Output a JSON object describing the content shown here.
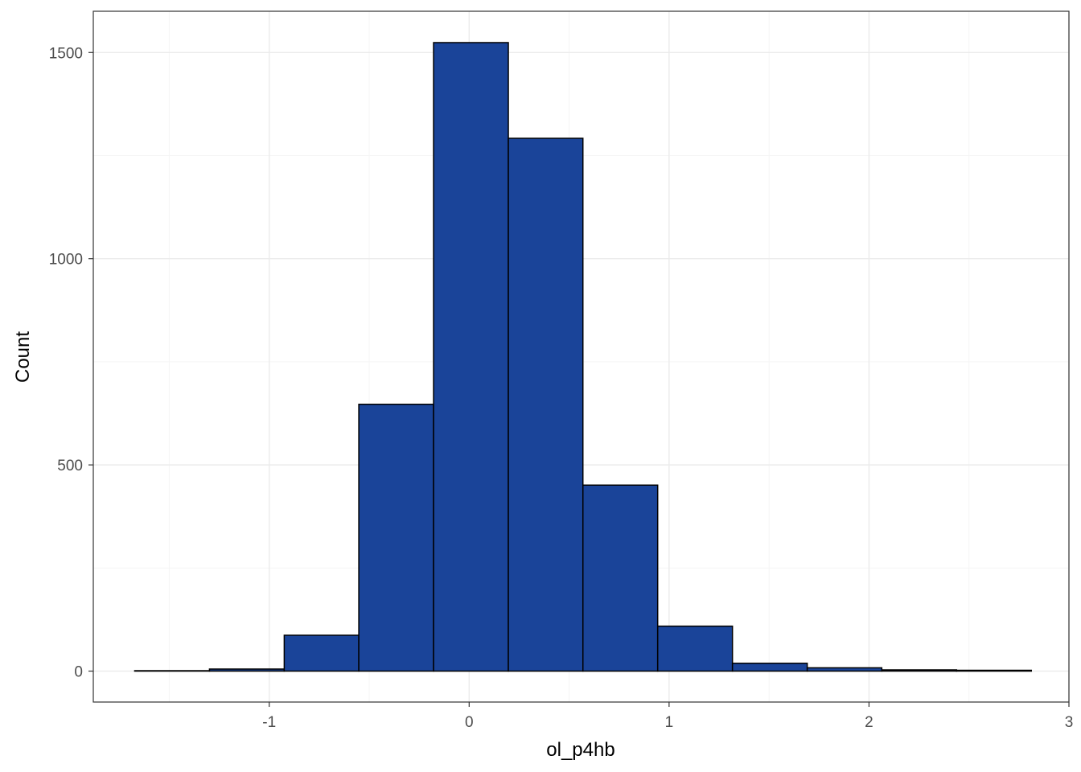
{
  "chart_data": {
    "type": "histogram",
    "xlabel": "ol_p4hb",
    "ylabel": "Count",
    "xlim": [
      -1.88,
      3.0
    ],
    "ylim": [
      -75,
      1600
    ],
    "x_ticks": [
      -1,
      0,
      1,
      2,
      3
    ],
    "y_ticks": [
      0,
      500,
      1000,
      1500
    ],
    "x_tick_labels": [
      "-1",
      "0",
      "1",
      "2",
      "3"
    ],
    "y_tick_labels": [
      "0",
      "500",
      "1000",
      "1500"
    ],
    "grid": true,
    "bin_width": 0.3737,
    "bins": [
      {
        "x0": -1.673,
        "x1": -1.299,
        "count": 1
      },
      {
        "x0": -1.299,
        "x1": -0.925,
        "count": 5
      },
      {
        "x0": -0.925,
        "x1": -0.552,
        "count": 87
      },
      {
        "x0": -0.552,
        "x1": -0.178,
        "count": 647
      },
      {
        "x0": -0.178,
        "x1": 0.196,
        "count": 1524
      },
      {
        "x0": 0.196,
        "x1": 0.569,
        "count": 1292
      },
      {
        "x0": 0.569,
        "x1": 0.943,
        "count": 451
      },
      {
        "x0": 0.943,
        "x1": 1.317,
        "count": 109
      },
      {
        "x0": 1.317,
        "x1": 1.691,
        "count": 19
      },
      {
        "x0": 1.691,
        "x1": 2.064,
        "count": 8
      },
      {
        "x0": 2.064,
        "x1": 2.438,
        "count": 3
      },
      {
        "x0": 2.438,
        "x1": 2.812,
        "count": 2
      }
    ],
    "colors": {
      "bar_fill": "#1a4499",
      "bar_stroke": "#000000",
      "grid_major": "#ebebeb",
      "grid_minor": "#f5f5f5",
      "panel_border": "#333333"
    }
  }
}
